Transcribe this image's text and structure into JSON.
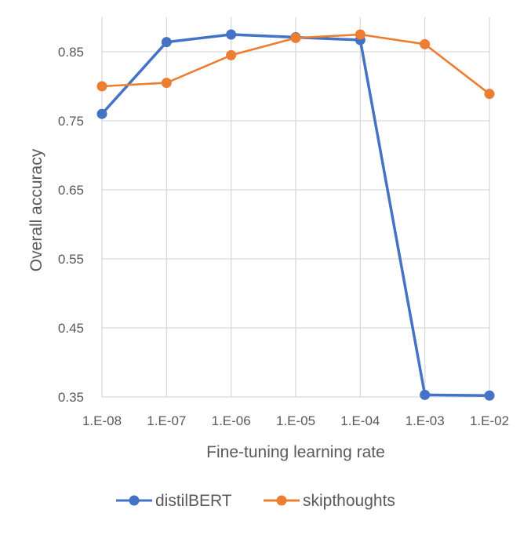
{
  "chart_data": {
    "type": "line",
    "title": "",
    "xlabel": "Fine-tuning learning rate",
    "ylabel": "Overall accuracy",
    "categories": [
      "1.E-08",
      "1.E-07",
      "1.E-06",
      "1.E-05",
      "1.E-04",
      "1.E-03",
      "1.E-02"
    ],
    "ylim": [
      0.35,
      0.9
    ],
    "yticks": [
      "0.35",
      "0.45",
      "0.55",
      "0.65",
      "0.75",
      "0.85"
    ],
    "grid": true,
    "legend_position": "bottom",
    "series": [
      {
        "name": "distilBERT",
        "color": "#4472C4",
        "values": [
          0.76,
          0.864,
          0.875,
          0.871,
          0.867,
          0.353,
          0.352
        ]
      },
      {
        "name": "skipthoughts",
        "color": "#ED7D31",
        "values": [
          0.8,
          0.805,
          0.845,
          0.87,
          0.875,
          0.861,
          0.789
        ]
      }
    ]
  }
}
